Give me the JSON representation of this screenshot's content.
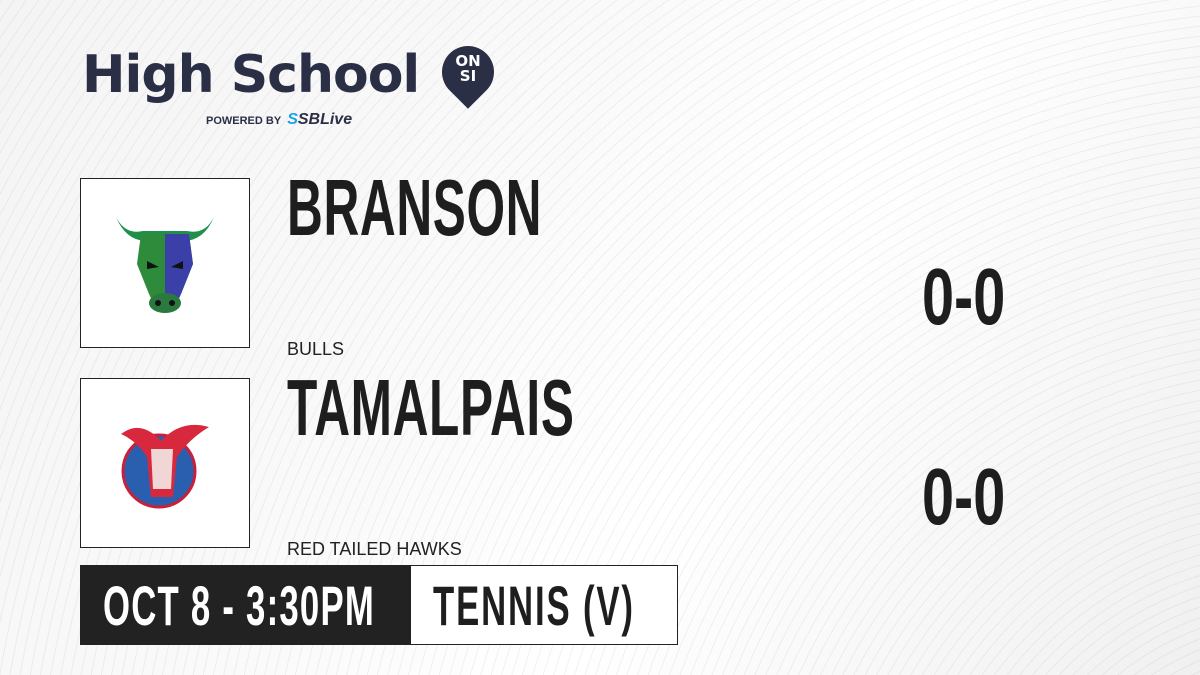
{
  "brand": {
    "title": "High School",
    "badge_line1": "ON",
    "badge_line2": "SI",
    "powered_by": "POWERED BY",
    "partner": "SBLive"
  },
  "teams": [
    {
      "name": "BRANSON",
      "mascot": "BULLS",
      "score": "0-0",
      "logo_icon": "bull-logo-icon"
    },
    {
      "name": "TAMALPAIS",
      "mascot": "RED TAILED HAWKS",
      "score": "0-0",
      "logo_icon": "hawk-logo-icon"
    }
  ],
  "event": {
    "datetime": "OCT 8 - 3:30PM",
    "sport": "TENNIS (V)"
  },
  "colors": {
    "brand_dark": "#2b2f45",
    "sblive_blue": "#1aa3e8",
    "bar_dark": "#222222"
  }
}
